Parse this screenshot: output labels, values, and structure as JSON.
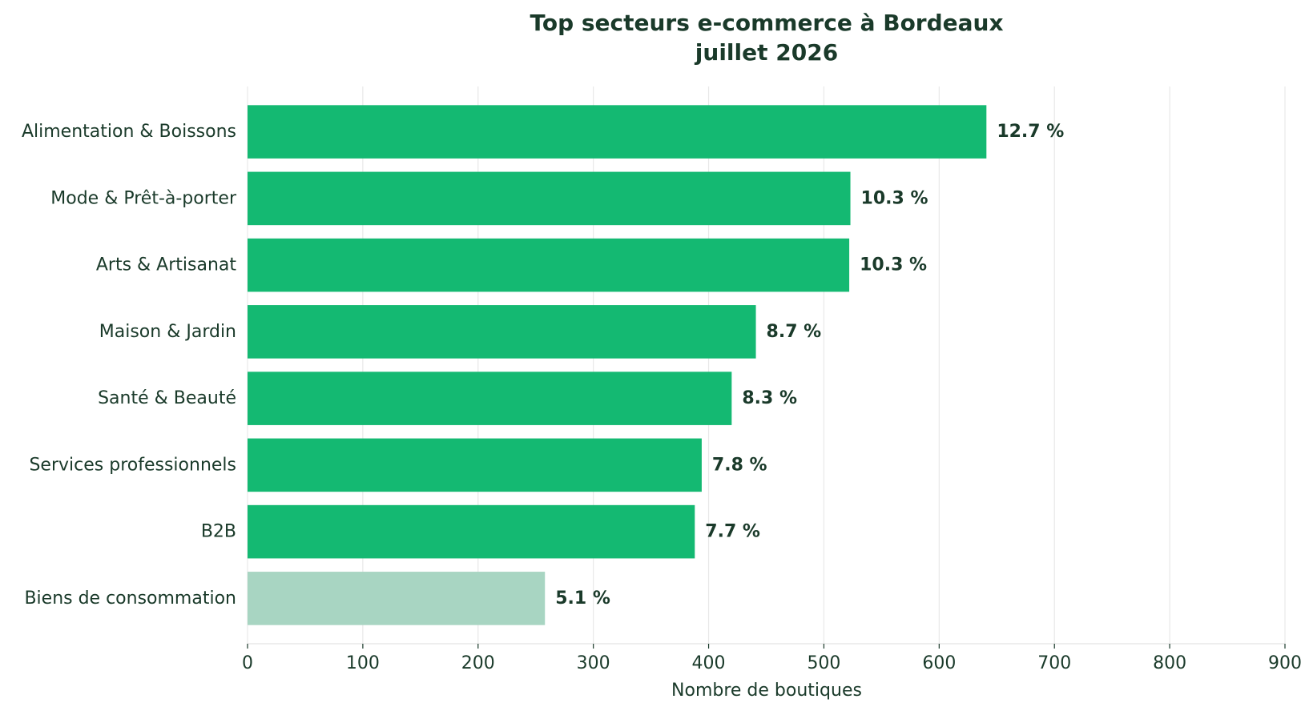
{
  "colors": {
    "bar_primary": "#14b972",
    "bar_muted": "#a8d5c2",
    "text_dark": "#1a3a2a",
    "grid": "#e8e8e8"
  },
  "chart_data": {
    "type": "bar",
    "orientation": "horizontal",
    "title_line1": "Top secteurs e-commerce à Bordeaux",
    "title_line2": "juillet 2026",
    "xlabel": "Nombre de boutiques",
    "ylabel": "",
    "xlim": [
      0,
      900
    ],
    "xticks": [
      0,
      100,
      200,
      300,
      400,
      500,
      600,
      700,
      800,
      900
    ],
    "grid": "vertical",
    "categories": [
      "Alimentation & Boissons",
      "Mode & Prêt-à-porter",
      "Arts & Artisanat",
      "Maison & Jardin",
      "Santé & Beauté",
      "Services professionnels",
      "B2B",
      "Biens de consommation"
    ],
    "values": [
      641,
      523,
      522,
      441,
      420,
      394,
      388,
      258
    ],
    "labels": [
      "12.7 %",
      "10.3 %",
      "10.3 %",
      "8.7 %",
      "8.3 %",
      "7.8 %",
      "7.7 %",
      "5.1 %"
    ],
    "highlight": [
      true,
      true,
      true,
      true,
      true,
      true,
      true,
      false
    ]
  }
}
